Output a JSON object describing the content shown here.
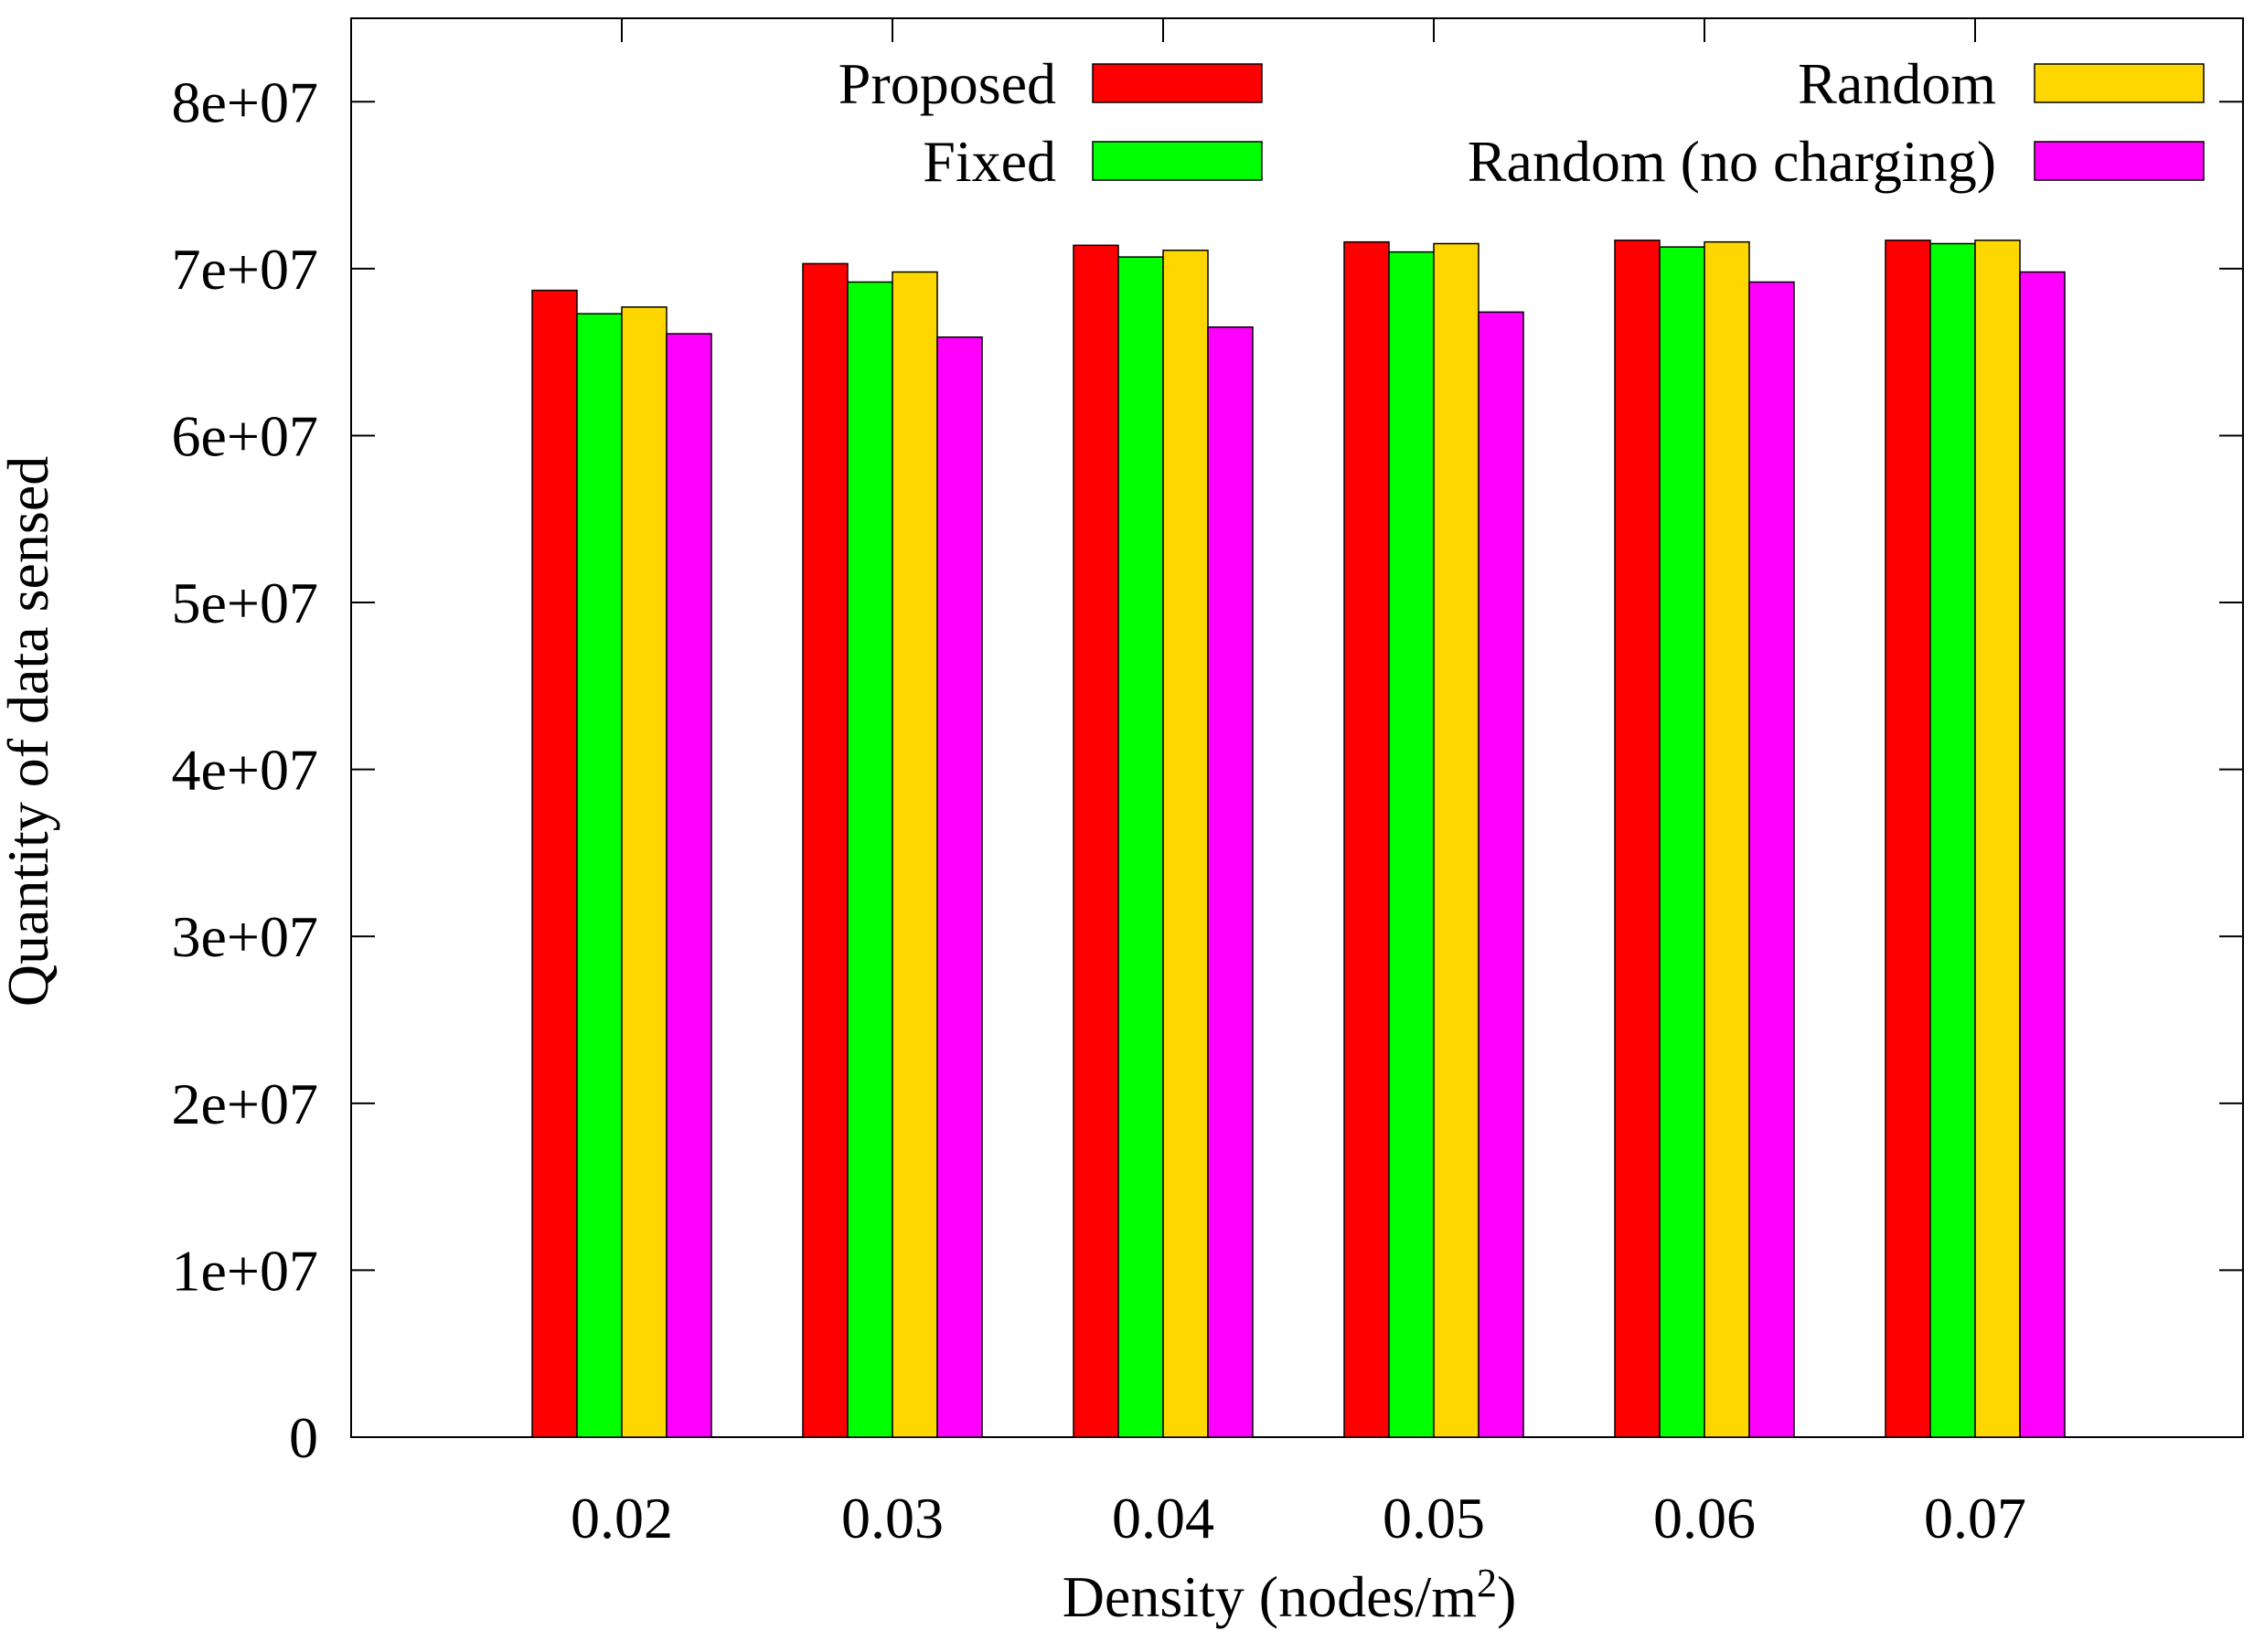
{
  "chart_data": {
    "type": "bar",
    "title": "",
    "xlabel": "Density (nodes/m",
    "xlabel_superscript": "2",
    "xlabel_suffix": ")",
    "ylabel": "Quantity of data sensed",
    "categories": [
      "0.02",
      "0.03",
      "0.04",
      "0.05",
      "0.06",
      "0.07"
    ],
    "ylim": [
      0,
      85000000
    ],
    "yticks": [
      0,
      10000000,
      20000000,
      30000000,
      40000000,
      50000000,
      60000000,
      70000000,
      80000000
    ],
    "ytick_labels": [
      "0",
      "1e+07",
      "2e+07",
      "3e+07",
      "4e+07",
      "5e+07",
      "6e+07",
      "7e+07",
      "8e+07"
    ],
    "legend_position": "top",
    "series": [
      {
        "name": "Proposed",
        "color": "#ff0000",
        "values": [
          68700000,
          70300000,
          71400000,
          71600000,
          71700000,
          71700000
        ]
      },
      {
        "name": "Fixed",
        "color": "#00ff00",
        "values": [
          67300000,
          69200000,
          70700000,
          71000000,
          71300000,
          71500000
        ]
      },
      {
        "name": "Random",
        "color": "#ffd700",
        "values": [
          67700000,
          69800000,
          71100000,
          71500000,
          71600000,
          71700000
        ]
      },
      {
        "name": "Random (no charging)",
        "color": "#ff00ff",
        "values": [
          66100000,
          65900000,
          66500000,
          67400000,
          69200000,
          69800000
        ]
      }
    ]
  }
}
